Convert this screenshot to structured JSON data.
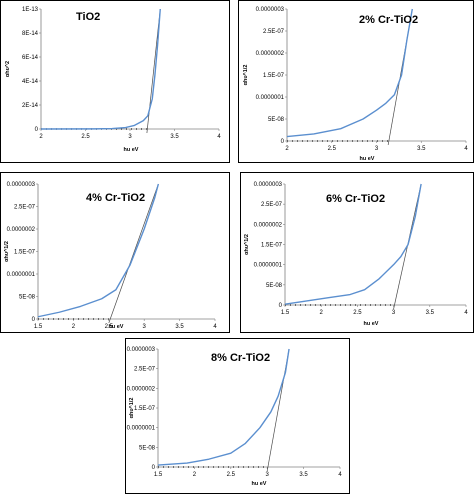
{
  "chart_data": [
    {
      "type": "line",
      "title": "TiO2",
      "xlabel": "hu eV",
      "ylabel": "αhυ^2",
      "xlim": [
        2,
        4
      ],
      "ylim": [
        0,
        1e-13
      ],
      "xticks": [
        "2",
        "2.5",
        "3",
        "3.5",
        "4"
      ],
      "yticks": [
        "0",
        "2E-14",
        "4E-14",
        "6E-14",
        "8E-14",
        "1E-13"
      ],
      "curve": [
        [
          2.0,
          0
        ],
        [
          2.6,
          1e-16
        ],
        [
          2.8,
          4e-16
        ],
        [
          2.95,
          1.2e-15
        ],
        [
          3.05,
          3e-15
        ],
        [
          3.15,
          7e-15
        ],
        [
          3.2,
          1.1e-14
        ],
        [
          3.25,
          2.5e-14
        ],
        [
          3.28,
          4.5e-14
        ],
        [
          3.31,
          7e-14
        ],
        [
          3.34,
          1e-13
        ]
      ],
      "tangent": [
        [
          3.19,
          0
        ],
        [
          3.34,
          1e-13
        ]
      ],
      "series_color": "#5b8fcf"
    },
    {
      "type": "line",
      "title": "2% Cr-TiO2",
      "xlabel": "hu eV",
      "ylabel": "αhυ^1/2",
      "xlim": [
        2,
        4
      ],
      "ylim": [
        0,
        3e-07
      ],
      "xticks": [
        "2",
        "2.5",
        "3",
        "3.5",
        "4"
      ],
      "yticks": [
        "0",
        "5E-08",
        "0.0000001",
        "1.5E-07",
        "0.0000002",
        "2.5E-07",
        "0.0000003"
      ],
      "curve": [
        [
          2.0,
          1e-08
        ],
        [
          2.3,
          1.6e-08
        ],
        [
          2.6,
          2.8e-08
        ],
        [
          2.85,
          5e-08
        ],
        [
          3.0,
          7e-08
        ],
        [
          3.1,
          8.5e-08
        ],
        [
          3.2,
          1.05e-07
        ],
        [
          3.28,
          1.5e-07
        ],
        [
          3.34,
          2.3e-07
        ],
        [
          3.4,
          3e-07
        ]
      ],
      "tangent": [
        [
          3.13,
          0
        ],
        [
          3.4,
          3e-07
        ]
      ],
      "series_color": "#5b8fcf"
    },
    {
      "type": "line",
      "title": "4% Cr-TiO2",
      "xlabel": "hu eV",
      "ylabel": "αhυ^1/2",
      "xlim": [
        1.5,
        4
      ],
      "ylim": [
        0,
        3e-07
      ],
      "xticks": [
        "1.5",
        "2",
        "2.5",
        "3",
        "3.5",
        "4"
      ],
      "yticks": [
        "0",
        "5E-08",
        "0.0000001",
        "1.5E-07",
        "0.0000002",
        "2.5E-07",
        "0.0000003"
      ],
      "curve": [
        [
          1.5,
          5e-09
        ],
        [
          1.8,
          1.5e-08
        ],
        [
          2.1,
          2.8e-08
        ],
        [
          2.4,
          4.5e-08
        ],
        [
          2.6,
          6.5e-08
        ],
        [
          2.8,
          1.2e-07
        ],
        [
          3.0,
          2e-07
        ],
        [
          3.15,
          2.7e-07
        ],
        [
          3.2,
          3e-07
        ]
      ],
      "tangent": [
        [
          2.5,
          0
        ],
        [
          3.2,
          3e-07
        ]
      ],
      "series_color": "#5b8fcf"
    },
    {
      "type": "line",
      "title": "6% Cr-TiO2",
      "xlabel": "hu eV",
      "ylabel": "αhυ^1/2",
      "xlim": [
        1.5,
        4
      ],
      "ylim": [
        0,
        3e-07
      ],
      "xticks": [
        "1.5",
        "2",
        "2.5",
        "3",
        "3.5",
        "4"
      ],
      "yticks": [
        "0",
        "5E-08",
        "0.0000001",
        "1.5E-07",
        "0.0000002",
        "2.5E-07",
        "0.0000003"
      ],
      "curve": [
        [
          1.5,
          2e-09
        ],
        [
          1.8,
          1e-08
        ],
        [
          2.1,
          1.8e-08
        ],
        [
          2.4,
          2.6e-08
        ],
        [
          2.6,
          3.8e-08
        ],
        [
          2.8,
          6.5e-08
        ],
        [
          3.0,
          1e-07
        ],
        [
          3.1,
          1.2e-07
        ],
        [
          3.2,
          1.5e-07
        ],
        [
          3.3,
          2.2e-07
        ],
        [
          3.38,
          3e-07
        ]
      ],
      "tangent": [
        [
          3.0,
          0
        ],
        [
          3.38,
          3e-07
        ]
      ],
      "series_color": "#5b8fcf"
    },
    {
      "type": "line",
      "title": "8% Cr-TiO2",
      "xlabel": "hu eV",
      "ylabel": "αhυ^1/2",
      "xlim": [
        1.5,
        4
      ],
      "ylim": [
        0,
        3e-07
      ],
      "xticks": [
        "1.5",
        "2",
        "2.5",
        "3",
        "3.5",
        "4"
      ],
      "yticks": [
        "0",
        "5E-08",
        "0.0000001",
        "1.5E-07",
        "0.0000002",
        "2.5E-07",
        "0.0000003"
      ],
      "curve": [
        [
          1.5,
          5e-09
        ],
        [
          1.9,
          1e-08
        ],
        [
          2.2,
          2e-08
        ],
        [
          2.5,
          3.5e-08
        ],
        [
          2.7,
          6e-08
        ],
        [
          2.9,
          1e-07
        ],
        [
          3.05,
          1.4e-07
        ],
        [
          3.15,
          1.8e-07
        ],
        [
          3.25,
          2.4e-07
        ],
        [
          3.3,
          3e-07
        ]
      ],
      "tangent": [
        [
          3.0,
          0
        ],
        [
          3.3,
          3e-07
        ]
      ],
      "series_color": "#5b8fcf"
    }
  ]
}
